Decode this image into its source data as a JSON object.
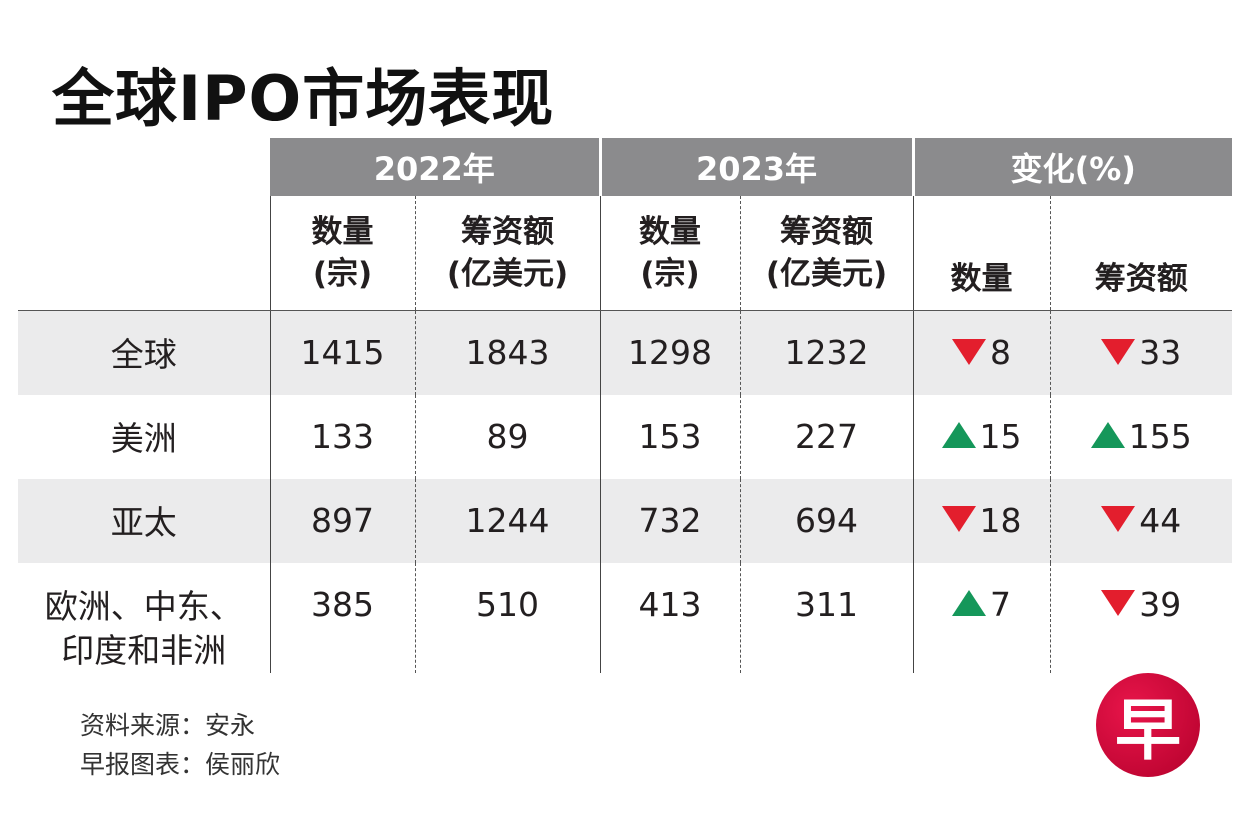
{
  "title": "全球IPO市场表现",
  "chart_data": {
    "type": "table",
    "title": "全球IPO市场表现",
    "groups": [
      "2022年",
      "2023年",
      "变化(%)"
    ],
    "subheaders": [
      {
        "l1": "数量",
        "l2": "(宗)"
      },
      {
        "l1": "筹资额",
        "l2": "(亿美元)"
      },
      {
        "l1": "数量",
        "l2": "(宗)"
      },
      {
        "l1": "筹资额",
        "l2": "(亿美元)"
      },
      {
        "l1": "数量",
        "l2": ""
      },
      {
        "l1": "筹资额",
        "l2": ""
      }
    ],
    "rows": [
      {
        "region": "全球",
        "region2": "",
        "v2022_count": "1415",
        "v2022_funds": "1843",
        "v2023_count": "1298",
        "v2023_funds": "1232",
        "chg_count": "8",
        "chg_count_dir": "down",
        "chg_funds": "33",
        "chg_funds_dir": "down"
      },
      {
        "region": "美洲",
        "region2": "",
        "v2022_count": "133",
        "v2022_funds": "89",
        "v2023_count": "153",
        "v2023_funds": "227",
        "chg_count": "15",
        "chg_count_dir": "up",
        "chg_funds": "155",
        "chg_funds_dir": "up"
      },
      {
        "region": "亚太",
        "region2": "",
        "v2022_count": "897",
        "v2022_funds": "1244",
        "v2023_count": "732",
        "v2023_funds": "694",
        "chg_count": "18",
        "chg_count_dir": "down",
        "chg_funds": "44",
        "chg_funds_dir": "down"
      },
      {
        "region": "欧洲、中东、",
        "region2": "印度和非洲",
        "v2022_count": "385",
        "v2022_funds": "510",
        "v2023_count": "413",
        "v2023_funds": "311",
        "chg_count": "7",
        "chg_count_dir": "up",
        "chg_funds": "39",
        "chg_funds_dir": "down"
      }
    ]
  },
  "footer": {
    "source": "资料来源：安永",
    "credit": "早报图表：侯丽欣"
  },
  "logo": {
    "text": "早"
  },
  "colors": {
    "header_bg": "#8b8b8d",
    "row_shade": "#ebebec",
    "down": "#e31e2d",
    "up": "#15975a",
    "logo": "#d0103a"
  }
}
